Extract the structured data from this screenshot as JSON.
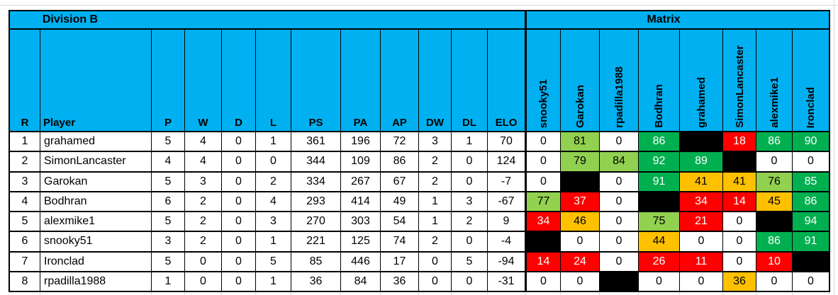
{
  "titles": {
    "division": "Division B",
    "matrix": "Matrix"
  },
  "columns": [
    "R",
    "Player",
    "P",
    "W",
    "D",
    "L",
    "PS",
    "PA",
    "AP",
    "DW",
    "DL",
    "ELO"
  ],
  "matrix_columns": [
    "snooky51",
    "Garokan",
    "rpadilla1988",
    "Bodhran",
    "grahamed",
    "SimonLancaster",
    "alexmike1",
    "Ironclad"
  ],
  "colors": {
    "header_bg": "#00B0F0",
    "win_high_green": "#00B050",
    "win_light_green": "#92D050",
    "mid_amber": "#FFC000",
    "loss_red": "#FF0000",
    "self_black": "#000000"
  },
  "rows": [
    {
      "r": "1",
      "player": "grahamed",
      "p": "5",
      "w": "4",
      "d": "0",
      "l": "1",
      "ps": "361",
      "pa": "196",
      "ap": "72",
      "dw": "3",
      "dl": "1",
      "elo": "70",
      "matrix": [
        {
          "v": "0",
          "c": "white"
        },
        {
          "v": "81",
          "c": "lightgreen"
        },
        {
          "v": "0",
          "c": "white"
        },
        {
          "v": "86",
          "c": "green"
        },
        {
          "v": "",
          "c": "black"
        },
        {
          "v": "18",
          "c": "red"
        },
        {
          "v": "86",
          "c": "green"
        },
        {
          "v": "90",
          "c": "green"
        }
      ]
    },
    {
      "r": "2",
      "player": "SimonLancaster",
      "p": "4",
      "w": "4",
      "d": "0",
      "l": "0",
      "ps": "344",
      "pa": "109",
      "ap": "86",
      "dw": "2",
      "dl": "0",
      "elo": "124",
      "matrix": [
        {
          "v": "0",
          "c": "white"
        },
        {
          "v": "79",
          "c": "lightgreen"
        },
        {
          "v": "84",
          "c": "lightgreen"
        },
        {
          "v": "92",
          "c": "green"
        },
        {
          "v": "89",
          "c": "green"
        },
        {
          "v": "",
          "c": "black"
        },
        {
          "v": "0",
          "c": "white"
        },
        {
          "v": "0",
          "c": "white"
        }
      ]
    },
    {
      "r": "3",
      "player": "Garokan",
      "p": "5",
      "w": "3",
      "d": "0",
      "l": "2",
      "ps": "334",
      "pa": "267",
      "ap": "67",
      "dw": "2",
      "dl": "0",
      "elo": "-7",
      "matrix": [
        {
          "v": "0",
          "c": "white"
        },
        {
          "v": "",
          "c": "black"
        },
        {
          "v": "0",
          "c": "white"
        },
        {
          "v": "91",
          "c": "green"
        },
        {
          "v": "41",
          "c": "amber"
        },
        {
          "v": "41",
          "c": "amber"
        },
        {
          "v": "76",
          "c": "lightgreen"
        },
        {
          "v": "85",
          "c": "green"
        }
      ]
    },
    {
      "r": "4",
      "player": "Bodhran",
      "p": "6",
      "w": "2",
      "d": "0",
      "l": "4",
      "ps": "293",
      "pa": "414",
      "ap": "49",
      "dw": "1",
      "dl": "3",
      "elo": "-67",
      "matrix": [
        {
          "v": "77",
          "c": "lightgreen"
        },
        {
          "v": "37",
          "c": "red"
        },
        {
          "v": "0",
          "c": "white"
        },
        {
          "v": "",
          "c": "black"
        },
        {
          "v": "34",
          "c": "red"
        },
        {
          "v": "14",
          "c": "red"
        },
        {
          "v": "45",
          "c": "amber"
        },
        {
          "v": "86",
          "c": "green"
        }
      ]
    },
    {
      "r": "5",
      "player": "alexmike1",
      "p": "5",
      "w": "2",
      "d": "0",
      "l": "3",
      "ps": "270",
      "pa": "303",
      "ap": "54",
      "dw": "1",
      "dl": "2",
      "elo": "9",
      "matrix": [
        {
          "v": "34",
          "c": "red"
        },
        {
          "v": "46",
          "c": "amber"
        },
        {
          "v": "0",
          "c": "white"
        },
        {
          "v": "75",
          "c": "lightgreen"
        },
        {
          "v": "21",
          "c": "red"
        },
        {
          "v": "0",
          "c": "white"
        },
        {
          "v": "",
          "c": "black"
        },
        {
          "v": "94",
          "c": "green"
        }
      ]
    },
    {
      "r": "6",
      "player": "snooky51",
      "p": "3",
      "w": "2",
      "d": "0",
      "l": "1",
      "ps": "221",
      "pa": "125",
      "ap": "74",
      "dw": "2",
      "dl": "0",
      "elo": "-4",
      "matrix": [
        {
          "v": "",
          "c": "black"
        },
        {
          "v": "0",
          "c": "white"
        },
        {
          "v": "0",
          "c": "white"
        },
        {
          "v": "44",
          "c": "amber"
        },
        {
          "v": "0",
          "c": "white"
        },
        {
          "v": "0",
          "c": "white"
        },
        {
          "v": "86",
          "c": "green"
        },
        {
          "v": "91",
          "c": "green"
        }
      ]
    },
    {
      "r": "7",
      "player": "Ironclad",
      "p": "5",
      "w": "0",
      "d": "0",
      "l": "5",
      "ps": "85",
      "pa": "446",
      "ap": "17",
      "dw": "0",
      "dl": "5",
      "elo": "-94",
      "matrix": [
        {
          "v": "14",
          "c": "red"
        },
        {
          "v": "24",
          "c": "red"
        },
        {
          "v": "0",
          "c": "white"
        },
        {
          "v": "26",
          "c": "red"
        },
        {
          "v": "11",
          "c": "red"
        },
        {
          "v": "0",
          "c": "white"
        },
        {
          "v": "10",
          "c": "red"
        },
        {
          "v": "",
          "c": "black"
        }
      ]
    },
    {
      "r": "8",
      "player": "rpadilla1988",
      "p": "1",
      "w": "0",
      "d": "0",
      "l": "1",
      "ps": "36",
      "pa": "84",
      "ap": "36",
      "dw": "0",
      "dl": "0",
      "elo": "-31",
      "matrix": [
        {
          "v": "0",
          "c": "white"
        },
        {
          "v": "0",
          "c": "white"
        },
        {
          "v": "",
          "c": "black"
        },
        {
          "v": "0",
          "c": "white"
        },
        {
          "v": "0",
          "c": "white"
        },
        {
          "v": "36",
          "c": "amber"
        },
        {
          "v": "0",
          "c": "white"
        },
        {
          "v": "0",
          "c": "white"
        }
      ]
    }
  ]
}
